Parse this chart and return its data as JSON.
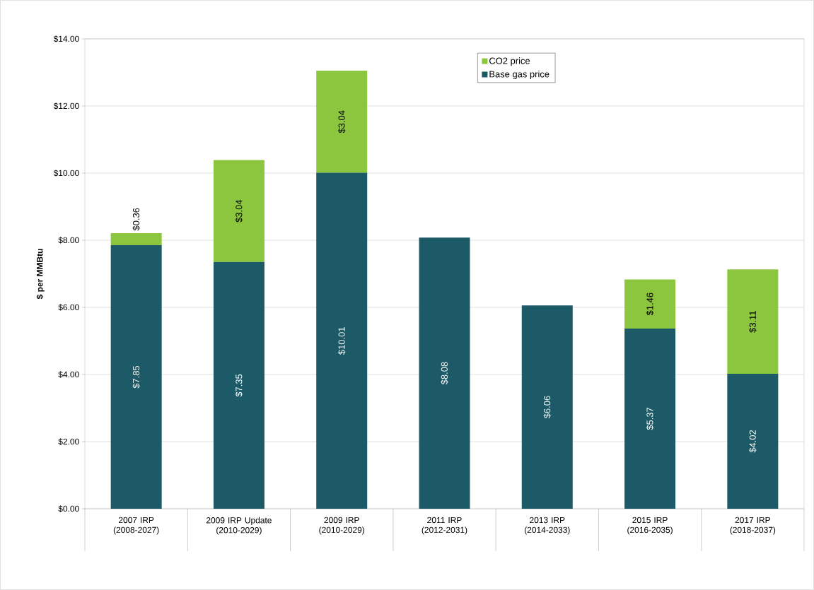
{
  "chart_data": {
    "type": "bar",
    "stacked": true,
    "ylabel": "$ per MMBtu",
    "categories": [
      "2007 IRP (2008-2027)",
      "2009 IRP Update (2010-2029)",
      "2009 IRP (2010-2029)",
      "2011 IRP (2012-2031)",
      "2013 IRP (2014-2033)",
      "2015 IRP (2016-2035)",
      "2017 IRP (2018-2037)"
    ],
    "series": [
      {
        "name": "Base gas price",
        "color": "#1b5a66",
        "values": [
          7.85,
          7.35,
          10.01,
          8.08,
          6.06,
          5.37,
          4.02
        ],
        "value_labels": [
          "$7.85",
          "$7.35",
          "$10.01",
          "$8.08",
          "$6.06",
          "$5.37",
          "$4.02"
        ]
      },
      {
        "name": "CO2 price",
        "color": "#8cc63f",
        "values": [
          0.36,
          3.04,
          3.04,
          null,
          null,
          1.46,
          3.11
        ],
        "value_labels": [
          "$0.36",
          "$3.04",
          "$3.04",
          null,
          null,
          "$1.46",
          "$3.11"
        ]
      }
    ],
    "ylim": [
      0,
      14
    ],
    "yticks": [
      {
        "value": 0,
        "label": "$0.00"
      },
      {
        "value": 2,
        "label": "$2.00"
      },
      {
        "value": 4,
        "label": "$4.00"
      },
      {
        "value": 6,
        "label": "$6.00"
      },
      {
        "value": 8,
        "label": "$8.00"
      },
      {
        "value": 10,
        "label": "$10.00"
      },
      {
        "value": 12,
        "label": "$12.00"
      },
      {
        "value": 14,
        "label": "$14.00"
      }
    ],
    "grid": "y",
    "legend": "top"
  }
}
